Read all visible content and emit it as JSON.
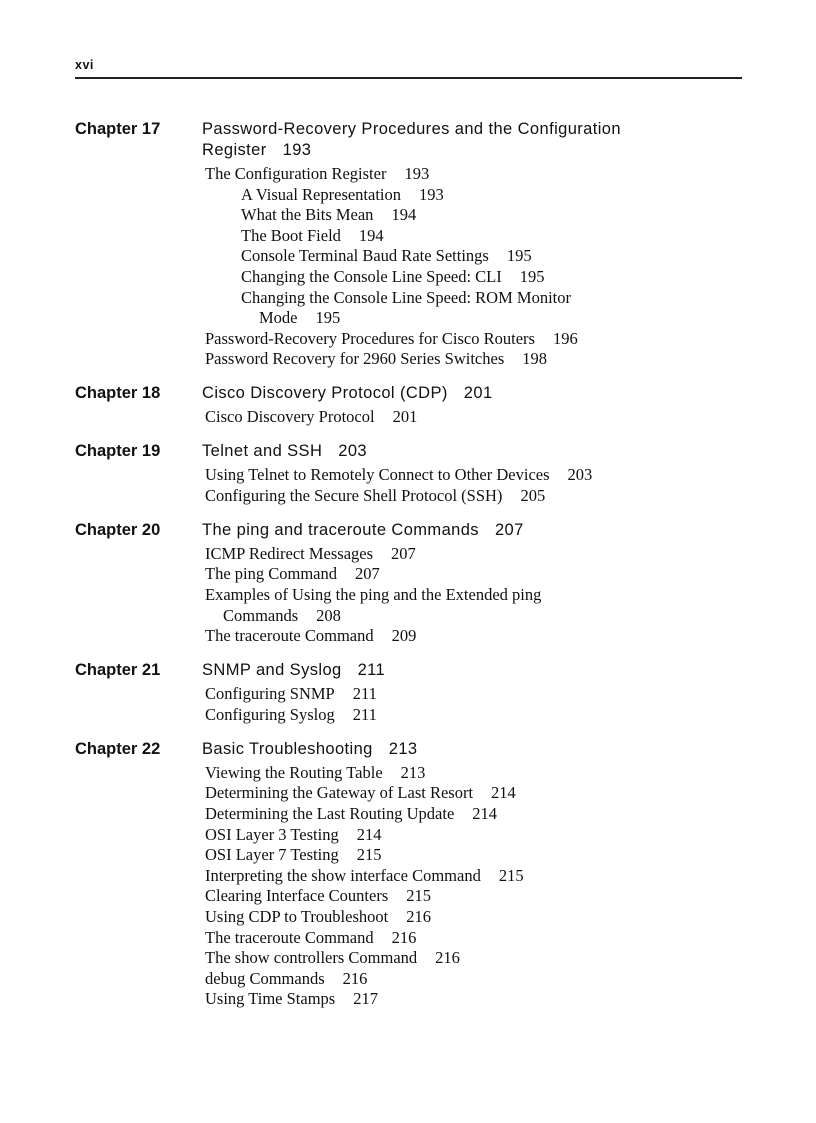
{
  "header": {
    "folio": "xvi"
  },
  "chapters": [
    {
      "label": "Chapter 17",
      "title": "Password-Recovery Procedures and the Configuration",
      "title_cont": "Register",
      "page": "193",
      "entries": [
        {
          "text": "The Configuration Register",
          "page": "193",
          "level": 1
        },
        {
          "text": "A Visual Representation",
          "page": "193",
          "level": 2
        },
        {
          "text": "What the Bits Mean",
          "page": "194",
          "level": 2
        },
        {
          "text": "The Boot Field",
          "page": "194",
          "level": 2
        },
        {
          "text": "Console Terminal Baud Rate Settings",
          "page": "195",
          "level": 2
        },
        {
          "text": "Changing the Console Line Speed: CLI",
          "page": "195",
          "level": 2
        },
        {
          "text": "Changing the Console Line Speed: ROM Monitor",
          "cont": "Mode",
          "page": "195",
          "level": 2
        },
        {
          "text": "Password-Recovery Procedures for Cisco Routers",
          "page": "196",
          "level": 1
        },
        {
          "text": "Password Recovery for 2960 Series Switches",
          "page": "198",
          "level": 1
        }
      ]
    },
    {
      "label": "Chapter 18",
      "title": "Cisco Discovery Protocol (CDP)",
      "page": "201",
      "entries": [
        {
          "text": "Cisco Discovery Protocol",
          "page": "201",
          "level": 1
        }
      ]
    },
    {
      "label": "Chapter 19",
      "title": "Telnet and SSH",
      "page": "203",
      "entries": [
        {
          "text": "Using Telnet to Remotely Connect to Other Devices",
          "page": "203",
          "level": 1
        },
        {
          "text": "Configuring the Secure Shell Protocol (SSH)",
          "page": "205",
          "level": 1
        }
      ]
    },
    {
      "label": "Chapter 20",
      "title": "The ping and traceroute Commands",
      "page": "207",
      "entries": [
        {
          "text": "ICMP Redirect Messages",
          "page": "207",
          "level": 1
        },
        {
          "text": "The ping Command",
          "page": "207",
          "level": 1
        },
        {
          "text": "Examples of Using the ping and the Extended ping",
          "cont": "Commands",
          "page": "208",
          "level": 1
        },
        {
          "text": "The traceroute Command",
          "page": "209",
          "level": 1
        }
      ]
    },
    {
      "label": "Chapter 21",
      "title": "SNMP and Syslog",
      "page": "211",
      "entries": [
        {
          "text": "Configuring SNMP",
          "page": "211",
          "level": 1
        },
        {
          "text": "Configuring Syslog",
          "page": "211",
          "level": 1
        }
      ]
    },
    {
      "label": "Chapter 22",
      "title": "Basic Troubleshooting",
      "page": "213",
      "entries": [
        {
          "text": "Viewing the Routing Table",
          "page": "213",
          "level": 1
        },
        {
          "text": "Determining the Gateway of Last Resort",
          "page": "214",
          "level": 1
        },
        {
          "text": "Determining the Last Routing Update",
          "page": "214",
          "level": 1
        },
        {
          "text": "OSI Layer 3 Testing",
          "page": "214",
          "level": 1
        },
        {
          "text": "OSI Layer 7 Testing",
          "page": "215",
          "level": 1
        },
        {
          "text": "Interpreting the show interface Command",
          "page": "215",
          "level": 1
        },
        {
          "text": "Clearing Interface Counters",
          "page": "215",
          "level": 1
        },
        {
          "text": "Using CDP to Troubleshoot",
          "page": "216",
          "level": 1
        },
        {
          "text": "The traceroute Command",
          "page": "216",
          "level": 1
        },
        {
          "text": "The show controllers Command",
          "page": "216",
          "level": 1
        },
        {
          "text": "debug Commands",
          "page": "216",
          "level": 1
        },
        {
          "text": "Using Time Stamps",
          "page": "217",
          "level": 1
        }
      ]
    }
  ]
}
